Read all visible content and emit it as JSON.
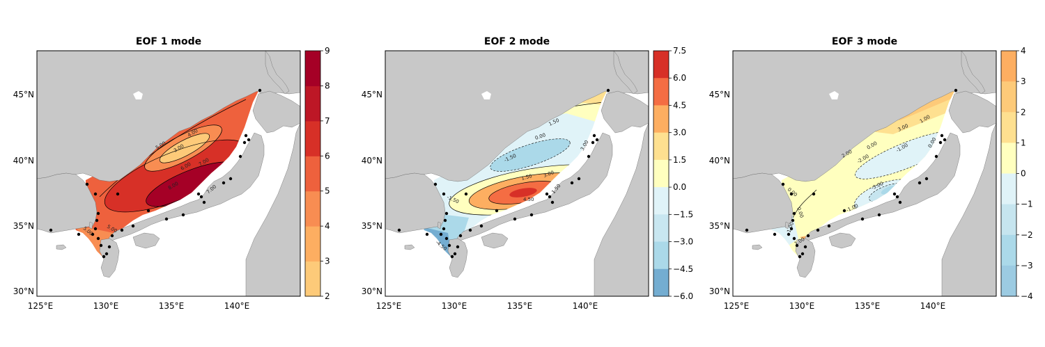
{
  "figure": {
    "panels": [
      {
        "title": "EOF 1 mode",
        "lon_ticks": [
          "125°E",
          "130°E",
          "135°E",
          "140°E"
        ],
        "lat_ticks": [
          "30°N",
          "35°N",
          "40°N",
          "45°N"
        ],
        "colorbar": {
          "ticks": [
            "2",
            "3",
            "4",
            "5",
            "6",
            "7",
            "8",
            "9"
          ],
          "colors": [
            "#fdca79",
            "#fdae61",
            "#f88d52",
            "#ee613d",
            "#d73027",
            "#bd1726",
            "#a50026"
          ]
        },
        "contour_labels": [
          "5.00",
          "4.00",
          "3.00",
          "6.00",
          "7.00",
          "8.00",
          "7.00",
          "5.00",
          "5.00"
        ]
      },
      {
        "title": "EOF 2 mode",
        "lon_ticks": [
          "125°E",
          "130°E",
          "135°E",
          "140°E"
        ],
        "lat_ticks": [
          "30°N",
          "35°N",
          "40°N",
          "45°N"
        ],
        "colorbar": {
          "ticks": [
            "7.5",
            "6.0",
            "4.5",
            "3.0",
            "1.5",
            "0.0",
            "−1.5",
            "−3.0",
            "−4.5",
            "−6.0"
          ],
          "colors": [
            "#d73027",
            "#f46d43",
            "#fdae61",
            "#fee090",
            "#ffffbf",
            "#e0f3f8",
            "#c8e6f0",
            "#abd9e9",
            "#74add1"
          ]
        },
        "contour_labels": [
          "1.50",
          "0.00",
          "-1.50",
          "1.50",
          "3.00",
          "4.50",
          "1.50",
          "-1.50",
          "-4.50",
          "3.00"
        ]
      },
      {
        "title": "EOF 3 mode",
        "lon_ticks": [
          "125°E",
          "130°E",
          "135°E",
          "140°E"
        ],
        "lat_ticks": [
          "30°N",
          "35°N",
          "40°N",
          "45°N"
        ],
        "colorbar": {
          "ticks": [
            "4",
            "3",
            "2",
            "1",
            "0",
            "−1",
            "−2",
            "−3",
            "−4"
          ],
          "colors": [
            "#fdae61",
            "#fdca79",
            "#fee090",
            "#ffffbf",
            "#e0f3f8",
            "#c6e5ef",
            "#abd9e9",
            "#9ccbe2"
          ]
        },
        "contour_labels": [
          "3.00",
          "1.00",
          "2.00",
          "0.00",
          "-1.00",
          "-2.00",
          "-3.00",
          "-1.00",
          "0.00",
          "0.00",
          "1.00",
          "1.00",
          "0.00"
        ]
      }
    ]
  },
  "colors": {
    "land": "#c8c8c8",
    "station": "#000000",
    "frame": "#000000"
  }
}
